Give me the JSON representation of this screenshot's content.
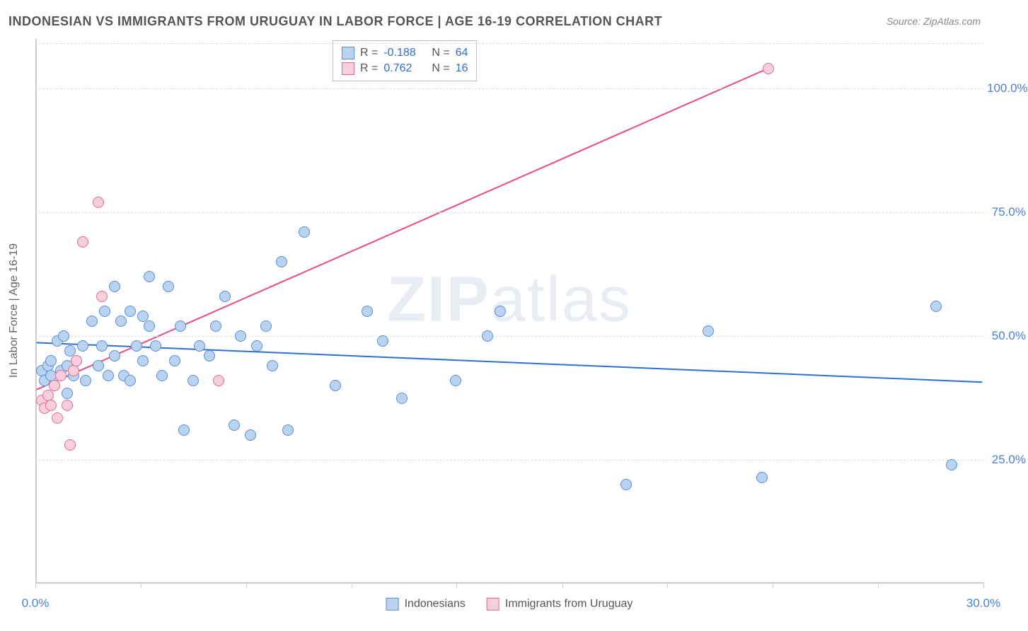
{
  "title": "INDONESIAN VS IMMIGRANTS FROM URUGUAY IN LABOR FORCE | AGE 16-19 CORRELATION CHART",
  "source": "Source: ZipAtlas.com",
  "watermark_a": "ZIP",
  "watermark_b": "atlas",
  "y_axis_label": "In Labor Force | Age 16-19",
  "chart": {
    "type": "scatter",
    "xlim": [
      0,
      30
    ],
    "ylim": [
      0,
      110
    ],
    "x_ticks": [
      0,
      3.33,
      6.67,
      10,
      13.33,
      16.67,
      20,
      23.33,
      26.67,
      30
    ],
    "x_tick_labels": {
      "0": "0.0%",
      "30": "30.0%"
    },
    "y_grid": [
      25,
      50,
      75,
      100
    ],
    "y_tick_labels": [
      "25.0%",
      "50.0%",
      "75.0%",
      "100.0%"
    ],
    "background_color": "#ffffff",
    "grid_color": "#dddddd",
    "axis_color": "#cccccc",
    "series": {
      "blue": {
        "label": "Indonesians",
        "marker_fill": "#b9d3f0",
        "marker_stroke": "#5a8fd6",
        "marker_size": 16,
        "line_color": "#2e6fd0",
        "line_width": 2,
        "R": "-0.188",
        "N": "64",
        "regression": {
          "x1": 0,
          "y1": 48.5,
          "x2": 30,
          "y2": 40.5
        },
        "points": [
          [
            0.2,
            43
          ],
          [
            0.3,
            41
          ],
          [
            0.4,
            44
          ],
          [
            0.5,
            42
          ],
          [
            0.5,
            45
          ],
          [
            0.6,
            40
          ],
          [
            0.7,
            49
          ],
          [
            0.8,
            43
          ],
          [
            0.9,
            50
          ],
          [
            1.0,
            38.5
          ],
          [
            1.0,
            44
          ],
          [
            1.1,
            47
          ],
          [
            1.2,
            42
          ],
          [
            1.3,
            45
          ],
          [
            1.5,
            48
          ],
          [
            1.6,
            41
          ],
          [
            1.8,
            53
          ],
          [
            2.0,
            44
          ],
          [
            2.1,
            48
          ],
          [
            2.2,
            55
          ],
          [
            2.3,
            42
          ],
          [
            2.5,
            60
          ],
          [
            2.5,
            46
          ],
          [
            2.7,
            53
          ],
          [
            2.8,
            42
          ],
          [
            3.0,
            55
          ],
          [
            3.0,
            41
          ],
          [
            3.2,
            48
          ],
          [
            3.4,
            54
          ],
          [
            3.4,
            45
          ],
          [
            3.6,
            62
          ],
          [
            3.6,
            52
          ],
          [
            3.8,
            48
          ],
          [
            4.0,
            42
          ],
          [
            4.2,
            60
          ],
          [
            4.4,
            45
          ],
          [
            4.6,
            52
          ],
          [
            4.7,
            31
          ],
          [
            5.0,
            41
          ],
          [
            5.2,
            48
          ],
          [
            5.5,
            46
          ],
          [
            5.7,
            52
          ],
          [
            6.0,
            58
          ],
          [
            6.3,
            32
          ],
          [
            6.5,
            50
          ],
          [
            6.8,
            30
          ],
          [
            7.0,
            48
          ],
          [
            7.3,
            52
          ],
          [
            7.5,
            44
          ],
          [
            7.8,
            65
          ],
          [
            8.0,
            31
          ],
          [
            8.5,
            71
          ],
          [
            9.5,
            40
          ],
          [
            10.5,
            55
          ],
          [
            11.0,
            49
          ],
          [
            11.6,
            37.5
          ],
          [
            13.3,
            41
          ],
          [
            14.3,
            50
          ],
          [
            14.7,
            55
          ],
          [
            18.7,
            20
          ],
          [
            21.3,
            51
          ],
          [
            23.0,
            21.5
          ],
          [
            28.5,
            56
          ],
          [
            29.0,
            24
          ]
        ]
      },
      "pink": {
        "label": "Immigrants from Uruguay",
        "marker_fill": "#f6cfda",
        "marker_stroke": "#e66a94",
        "marker_size": 16,
        "line_color": "#e94b85",
        "line_width": 2,
        "R": "0.762",
        "N": "16",
        "regression": {
          "x1": 0,
          "y1": 39,
          "x2": 23.2,
          "y2": 104
        },
        "points": [
          [
            0.2,
            37
          ],
          [
            0.3,
            35.5
          ],
          [
            0.4,
            38
          ],
          [
            0.5,
            36
          ],
          [
            0.6,
            40
          ],
          [
            0.7,
            33.5
          ],
          [
            0.8,
            42
          ],
          [
            1.0,
            36
          ],
          [
            1.1,
            28
          ],
          [
            1.2,
            43
          ],
          [
            1.3,
            45
          ],
          [
            1.5,
            69
          ],
          [
            2.0,
            77
          ],
          [
            2.1,
            58
          ],
          [
            5.8,
            41
          ],
          [
            23.2,
            104
          ]
        ]
      }
    },
    "legend_stats": {
      "rows": [
        {
          "swatch_fill": "#b9d3f0",
          "swatch_stroke": "#5a8fd6",
          "R_label": "R =",
          "R": "-0.188",
          "N_label": "N =",
          "N": "64"
        },
        {
          "swatch_fill": "#f6cfda",
          "swatch_stroke": "#e66a94",
          "R_label": "R =",
          "R": "0.762",
          "N_label": "N =",
          "N": "16"
        }
      ],
      "text_color": "#555555",
      "value_color": "#2e6fd0"
    }
  }
}
